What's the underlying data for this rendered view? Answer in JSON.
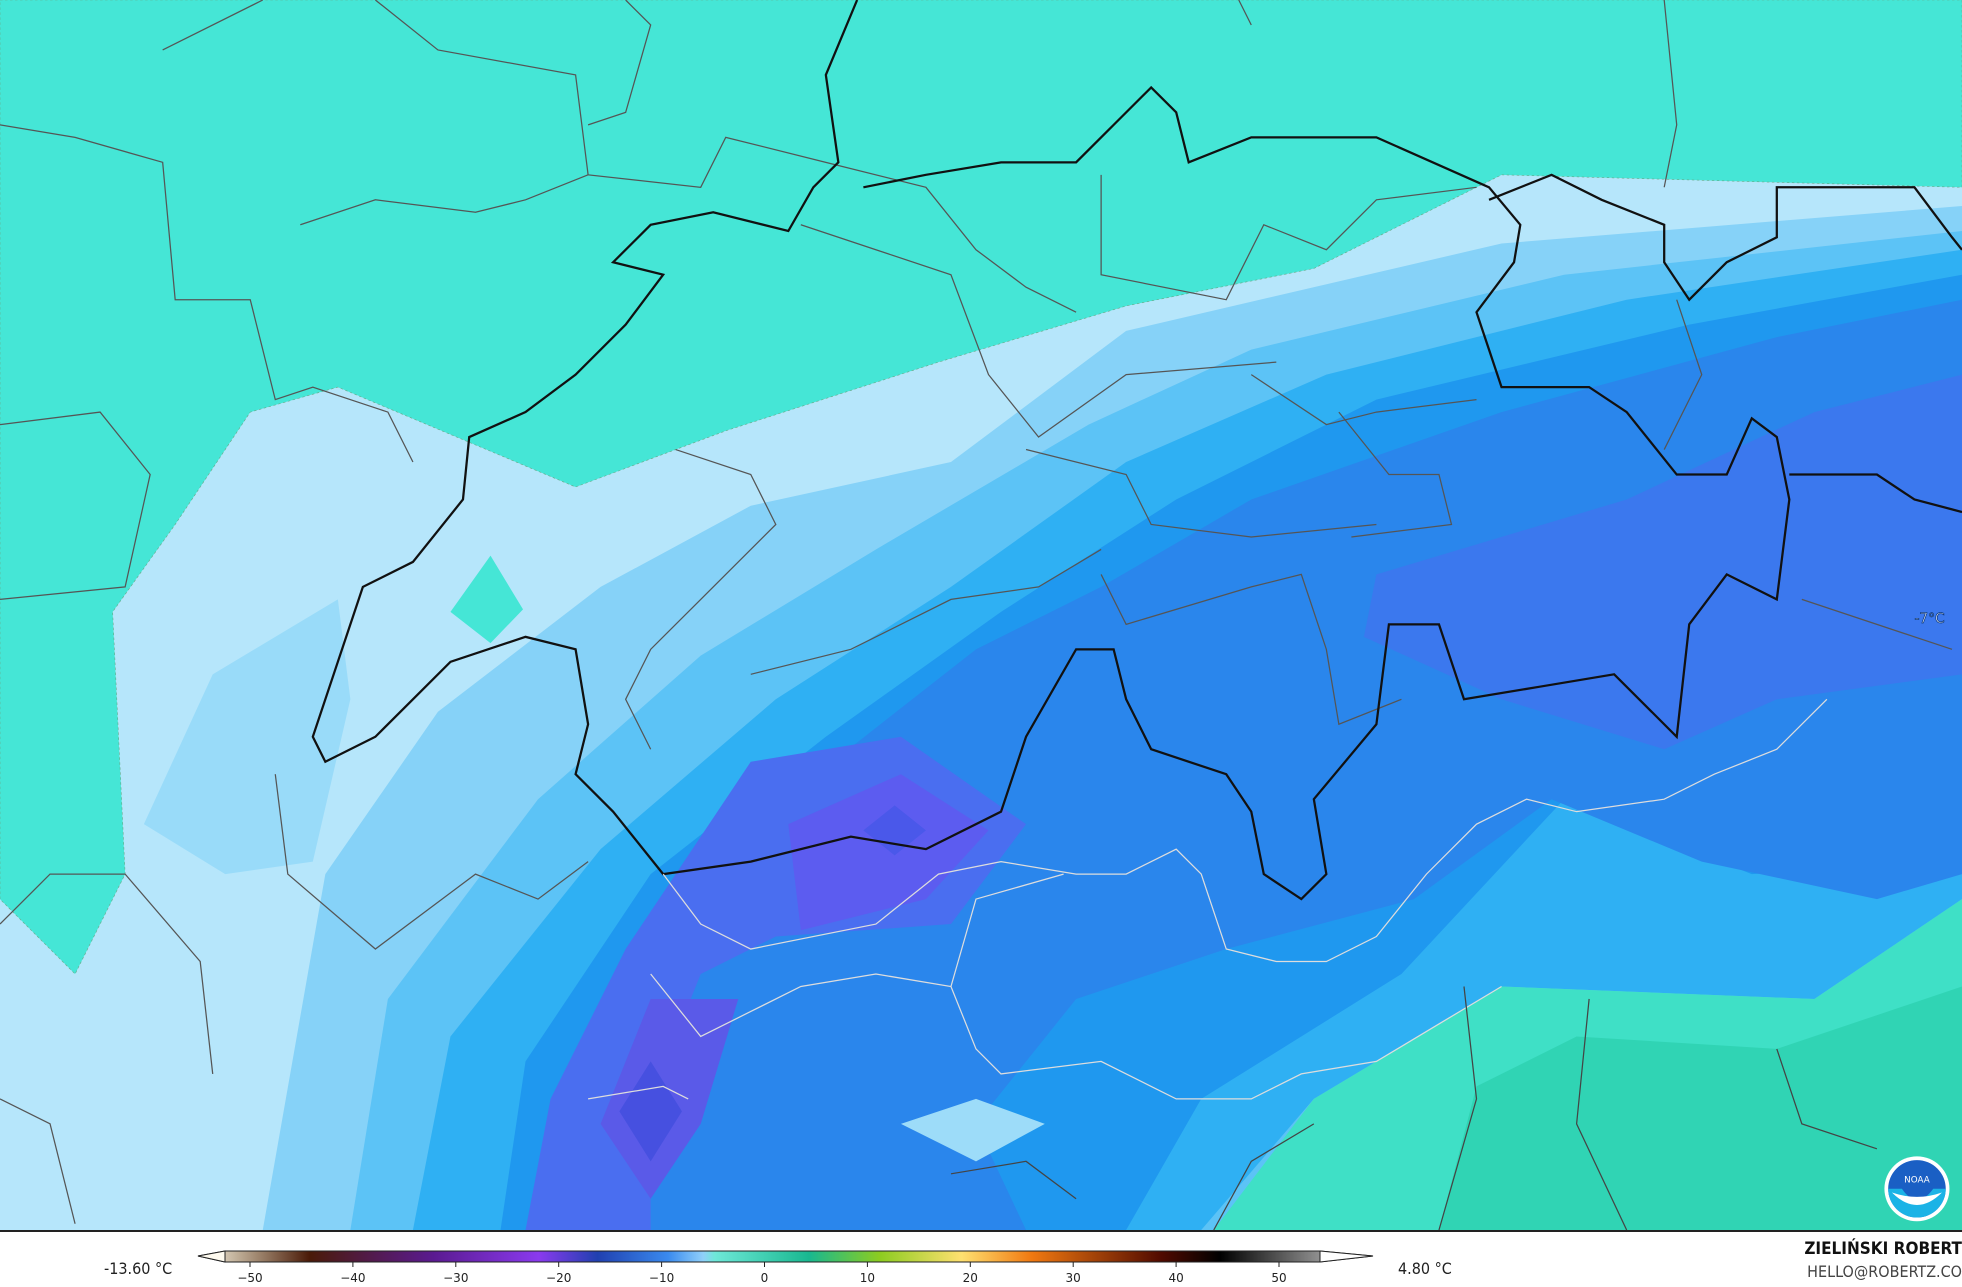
{
  "map": {
    "contour_label": "-7°C",
    "colors": {
      "teal": "#45e6d6",
      "light_blue": "#b6e6fb",
      "sky": "#86d2f8",
      "mid_blue": "#4dbaf5",
      "blue": "#1fa0f0",
      "deep_blue": "#2a86ec",
      "indigo": "#4a70f0",
      "violet": "#5c5cf0"
    }
  },
  "colorbar": {
    "min_label": "-13.60 °C",
    "max_label": "4.80 °C",
    "ticks": [
      "−50",
      "−40",
      "−30",
      "−20",
      "−10",
      "0",
      "10",
      "20",
      "30",
      "40",
      "50"
    ],
    "tick_values": [
      -50,
      -40,
      -30,
      -20,
      -10,
      0,
      10,
      20,
      30,
      40,
      50
    ],
    "range": [
      -50,
      55
    ]
  },
  "credits": {
    "author": "ZIELIŃSKI ROBERT",
    "email": "HELLO@ROBERTZ.CO",
    "logo_text": "NOAA"
  }
}
